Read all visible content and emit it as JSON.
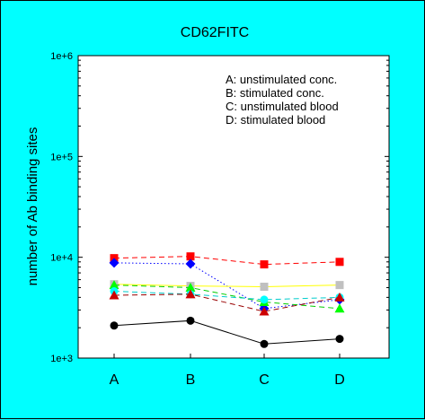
{
  "chart_data": {
    "type": "line",
    "title": "CD62FITC",
    "ylabel": "number of Ab binding sites",
    "xlabel": "",
    "yscale": "log",
    "ylim": [
      1000,
      1000000
    ],
    "yticks": [
      {
        "value": 1000,
        "label": "1e+3"
      },
      {
        "value": 10000,
        "label": "1e+4"
      },
      {
        "value": 100000,
        "label": "1e+5"
      },
      {
        "value": 1000000,
        "label": "1e+6"
      }
    ],
    "categories": [
      "A",
      "B",
      "C",
      "D"
    ],
    "grid": false,
    "legend_position": "top-right",
    "legend": [
      "A: unstimulated conc.",
      "B: stimulated conc.",
      "C: unstimulated blood",
      "D: stimulated blood"
    ],
    "series": [
      {
        "values": [
          9800,
          10200,
          8500,
          9000
        ],
        "color": "#ff0000",
        "line_color": "#ff0000",
        "dash": "dashed",
        "marker": "square"
      },
      {
        "values": [
          8800,
          8600,
          3100,
          3800
        ],
        "color": "#0000ff",
        "line_color": "#0000ff",
        "dash": "dotted",
        "marker": "diamond"
      },
      {
        "values": [
          5400,
          5200,
          5100,
          5300
        ],
        "color": "#c0c0c0",
        "line_color": "#ffff00",
        "dash": "solid",
        "marker": "square"
      },
      {
        "values": [
          5300,
          5000,
          3600,
          3100
        ],
        "color": "#00ff00",
        "line_color": "#00cc00",
        "dash": "dashed",
        "marker": "triangle"
      },
      {
        "values": [
          4600,
          4300,
          3800,
          4000
        ],
        "color": "#00ffff",
        "line_color": "#00cccc",
        "dash": "dashed",
        "marker": "circle"
      },
      {
        "values": [
          4200,
          4300,
          2900,
          4000
        ],
        "color": "#cc0000",
        "line_color": "#990000",
        "dash": "dashed",
        "marker": "triangle"
      },
      {
        "values": [
          2100,
          2350,
          1380,
          1550
        ],
        "color": "#000000",
        "line_color": "#000000",
        "dash": "solid",
        "marker": "circle"
      }
    ]
  }
}
